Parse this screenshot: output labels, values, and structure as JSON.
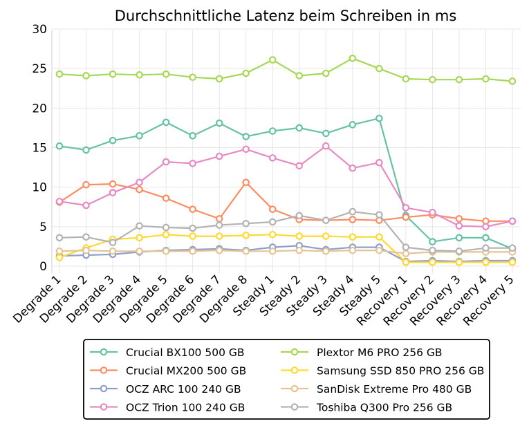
{
  "chart_data": {
    "type": "line",
    "title": "Durchschnittliche Latenz beim Schreiben in ms",
    "xlabel": "",
    "ylabel": "",
    "ylim": [
      0,
      30
    ],
    "yticks": [
      0,
      5,
      10,
      15,
      20,
      25,
      30
    ],
    "grid": true,
    "legend_position": "bottom",
    "categories": [
      "Degrade 1",
      "Degrade 2",
      "Degrade 3",
      "Degrade 4",
      "Degrade 5",
      "Degrade 6",
      "Degrade 7",
      "Degrade 8",
      "Steady 1",
      "Steady 2",
      "Steady 3",
      "Steady 4",
      "Steady 5",
      "Recovery 1",
      "Recovery 2",
      "Recovery 3",
      "Recovery 4",
      "Recovery 5"
    ],
    "series": [
      {
        "name": "Crucial BX100 500 GB",
        "color": "#66c2a5",
        "values": [
          15.2,
          14.7,
          15.9,
          16.5,
          18.2,
          16.5,
          18.1,
          16.4,
          17.1,
          17.5,
          16.8,
          17.9,
          18.7,
          6.4,
          3.1,
          3.6,
          3.6,
          2.2
        ]
      },
      {
        "name": "Crucial MX200 500 GB",
        "color": "#fc8d62",
        "values": [
          8.1,
          10.3,
          10.4,
          9.7,
          8.6,
          7.2,
          6.0,
          10.6,
          7.2,
          5.9,
          5.8,
          5.9,
          5.8,
          6.2,
          6.5,
          6.0,
          5.7,
          5.7
        ]
      },
      {
        "name": "OCZ ARC 100 240 GB",
        "color": "#8da0cb",
        "values": [
          1.3,
          1.4,
          1.5,
          1.8,
          2.0,
          2.1,
          2.2,
          2.0,
          2.4,
          2.6,
          2.1,
          2.4,
          2.4,
          0.6,
          0.7,
          0.6,
          0.7,
          0.7
        ]
      },
      {
        "name": "OCZ Trion 100 240 GB",
        "color": "#e78ac3",
        "values": [
          8.2,
          7.7,
          9.3,
          10.6,
          13.2,
          13.0,
          13.9,
          14.8,
          13.7,
          12.7,
          15.2,
          12.4,
          13.1,
          7.4,
          6.8,
          5.1,
          5.0,
          5.7
        ]
      },
      {
        "name": "Plextor M6 PRO 256 GB",
        "color": "#a6d854",
        "values": [
          24.3,
          24.1,
          24.3,
          24.2,
          24.3,
          23.9,
          23.7,
          24.4,
          26.1,
          24.1,
          24.4,
          26.3,
          25.0,
          23.7,
          23.6,
          23.6,
          23.7,
          23.4
        ]
      },
      {
        "name": "Samsung SSD 850 PRO 256 GB",
        "color": "#ffd92f",
        "values": [
          1.1,
          2.3,
          3.4,
          3.6,
          4.0,
          3.8,
          3.8,
          3.9,
          4.0,
          3.8,
          3.8,
          3.7,
          3.7,
          0.5,
          0.5,
          0.5,
          0.5,
          0.5
        ]
      },
      {
        "name": "SanDisk Extreme Pro 480 GB",
        "color": "#e5c494",
        "values": [
          1.9,
          2.0,
          1.9,
          1.9,
          1.9,
          1.9,
          2.0,
          1.9,
          1.9,
          2.0,
          1.9,
          2.0,
          2.0,
          1.6,
          1.8,
          1.8,
          1.8,
          1.8
        ]
      },
      {
        "name": "Toshiba Q300 Pro 256 GB",
        "color": "#b3b3b3",
        "values": [
          3.6,
          3.7,
          3.0,
          5.1,
          4.9,
          4.8,
          5.2,
          5.4,
          5.6,
          6.4,
          5.8,
          6.9,
          6.5,
          2.4,
          2.0,
          1.9,
          2.3,
          2.3
        ]
      }
    ]
  }
}
